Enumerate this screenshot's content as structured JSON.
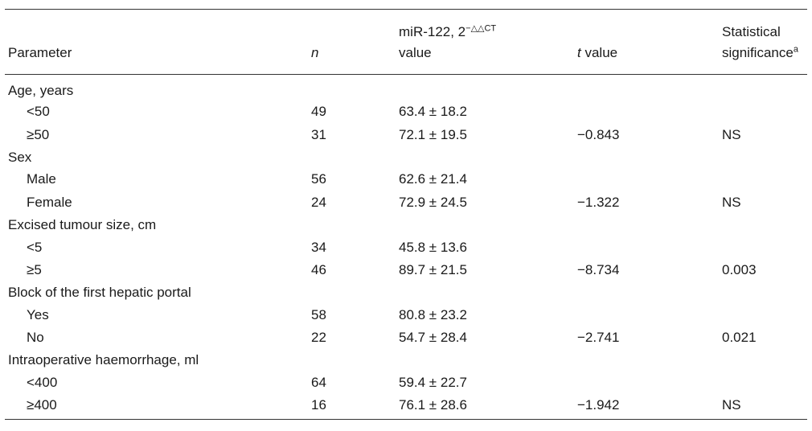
{
  "header": {
    "parameter": "Parameter",
    "n": "n",
    "value_line1_prefix": "miR-122, 2",
    "value_line1_sup": "−△△CT",
    "value_line2": "value",
    "t_italic": "t",
    "t_rest": " value",
    "sig_line1": "Statistical",
    "sig_line2": "significance",
    "sig_sup": "a"
  },
  "groups": [
    {
      "label": "Age, years",
      "rows": [
        {
          "label": "<50",
          "n": "49",
          "value": "63.4 ± 18.2",
          "t": "",
          "sig": ""
        },
        {
          "label": "≥50",
          "n": "31",
          "value": "72.1 ± 19.5",
          "t": "−0.843",
          "sig": "NS"
        }
      ]
    },
    {
      "label": "Sex",
      "rows": [
        {
          "label": "Male",
          "n": "56",
          "value": "62.6 ± 21.4",
          "t": "",
          "sig": ""
        },
        {
          "label": "Female",
          "n": "24",
          "value": "72.9 ± 24.5",
          "t": "−1.322",
          "sig": "NS"
        }
      ]
    },
    {
      "label": "Excised tumour size, cm",
      "rows": [
        {
          "label": "<5",
          "n": "34",
          "value": "45.8 ± 13.6",
          "t": "",
          "sig": ""
        },
        {
          "label": "≥5",
          "n": "46",
          "value": "89.7 ± 21.5",
          "t": "−8.734",
          "sig": "0.003"
        }
      ]
    },
    {
      "label": "Block of the first hepatic portal",
      "rows": [
        {
          "label": "Yes",
          "n": "58",
          "value": "80.8 ± 23.2",
          "t": "",
          "sig": ""
        },
        {
          "label": "No",
          "n": "22",
          "value": "54.7 ± 28.4",
          "t": "−2.741",
          "sig": "0.021"
        }
      ]
    },
    {
      "label": "Intraoperative haemorrhage, ml",
      "rows": [
        {
          "label": "<400",
          "n": "64",
          "value": "59.4 ± 22.7",
          "t": "",
          "sig": ""
        },
        {
          "label": "≥400",
          "n": "16",
          "value": "76.1 ± 28.6",
          "t": "−1.942",
          "sig": "NS"
        }
      ]
    }
  ]
}
